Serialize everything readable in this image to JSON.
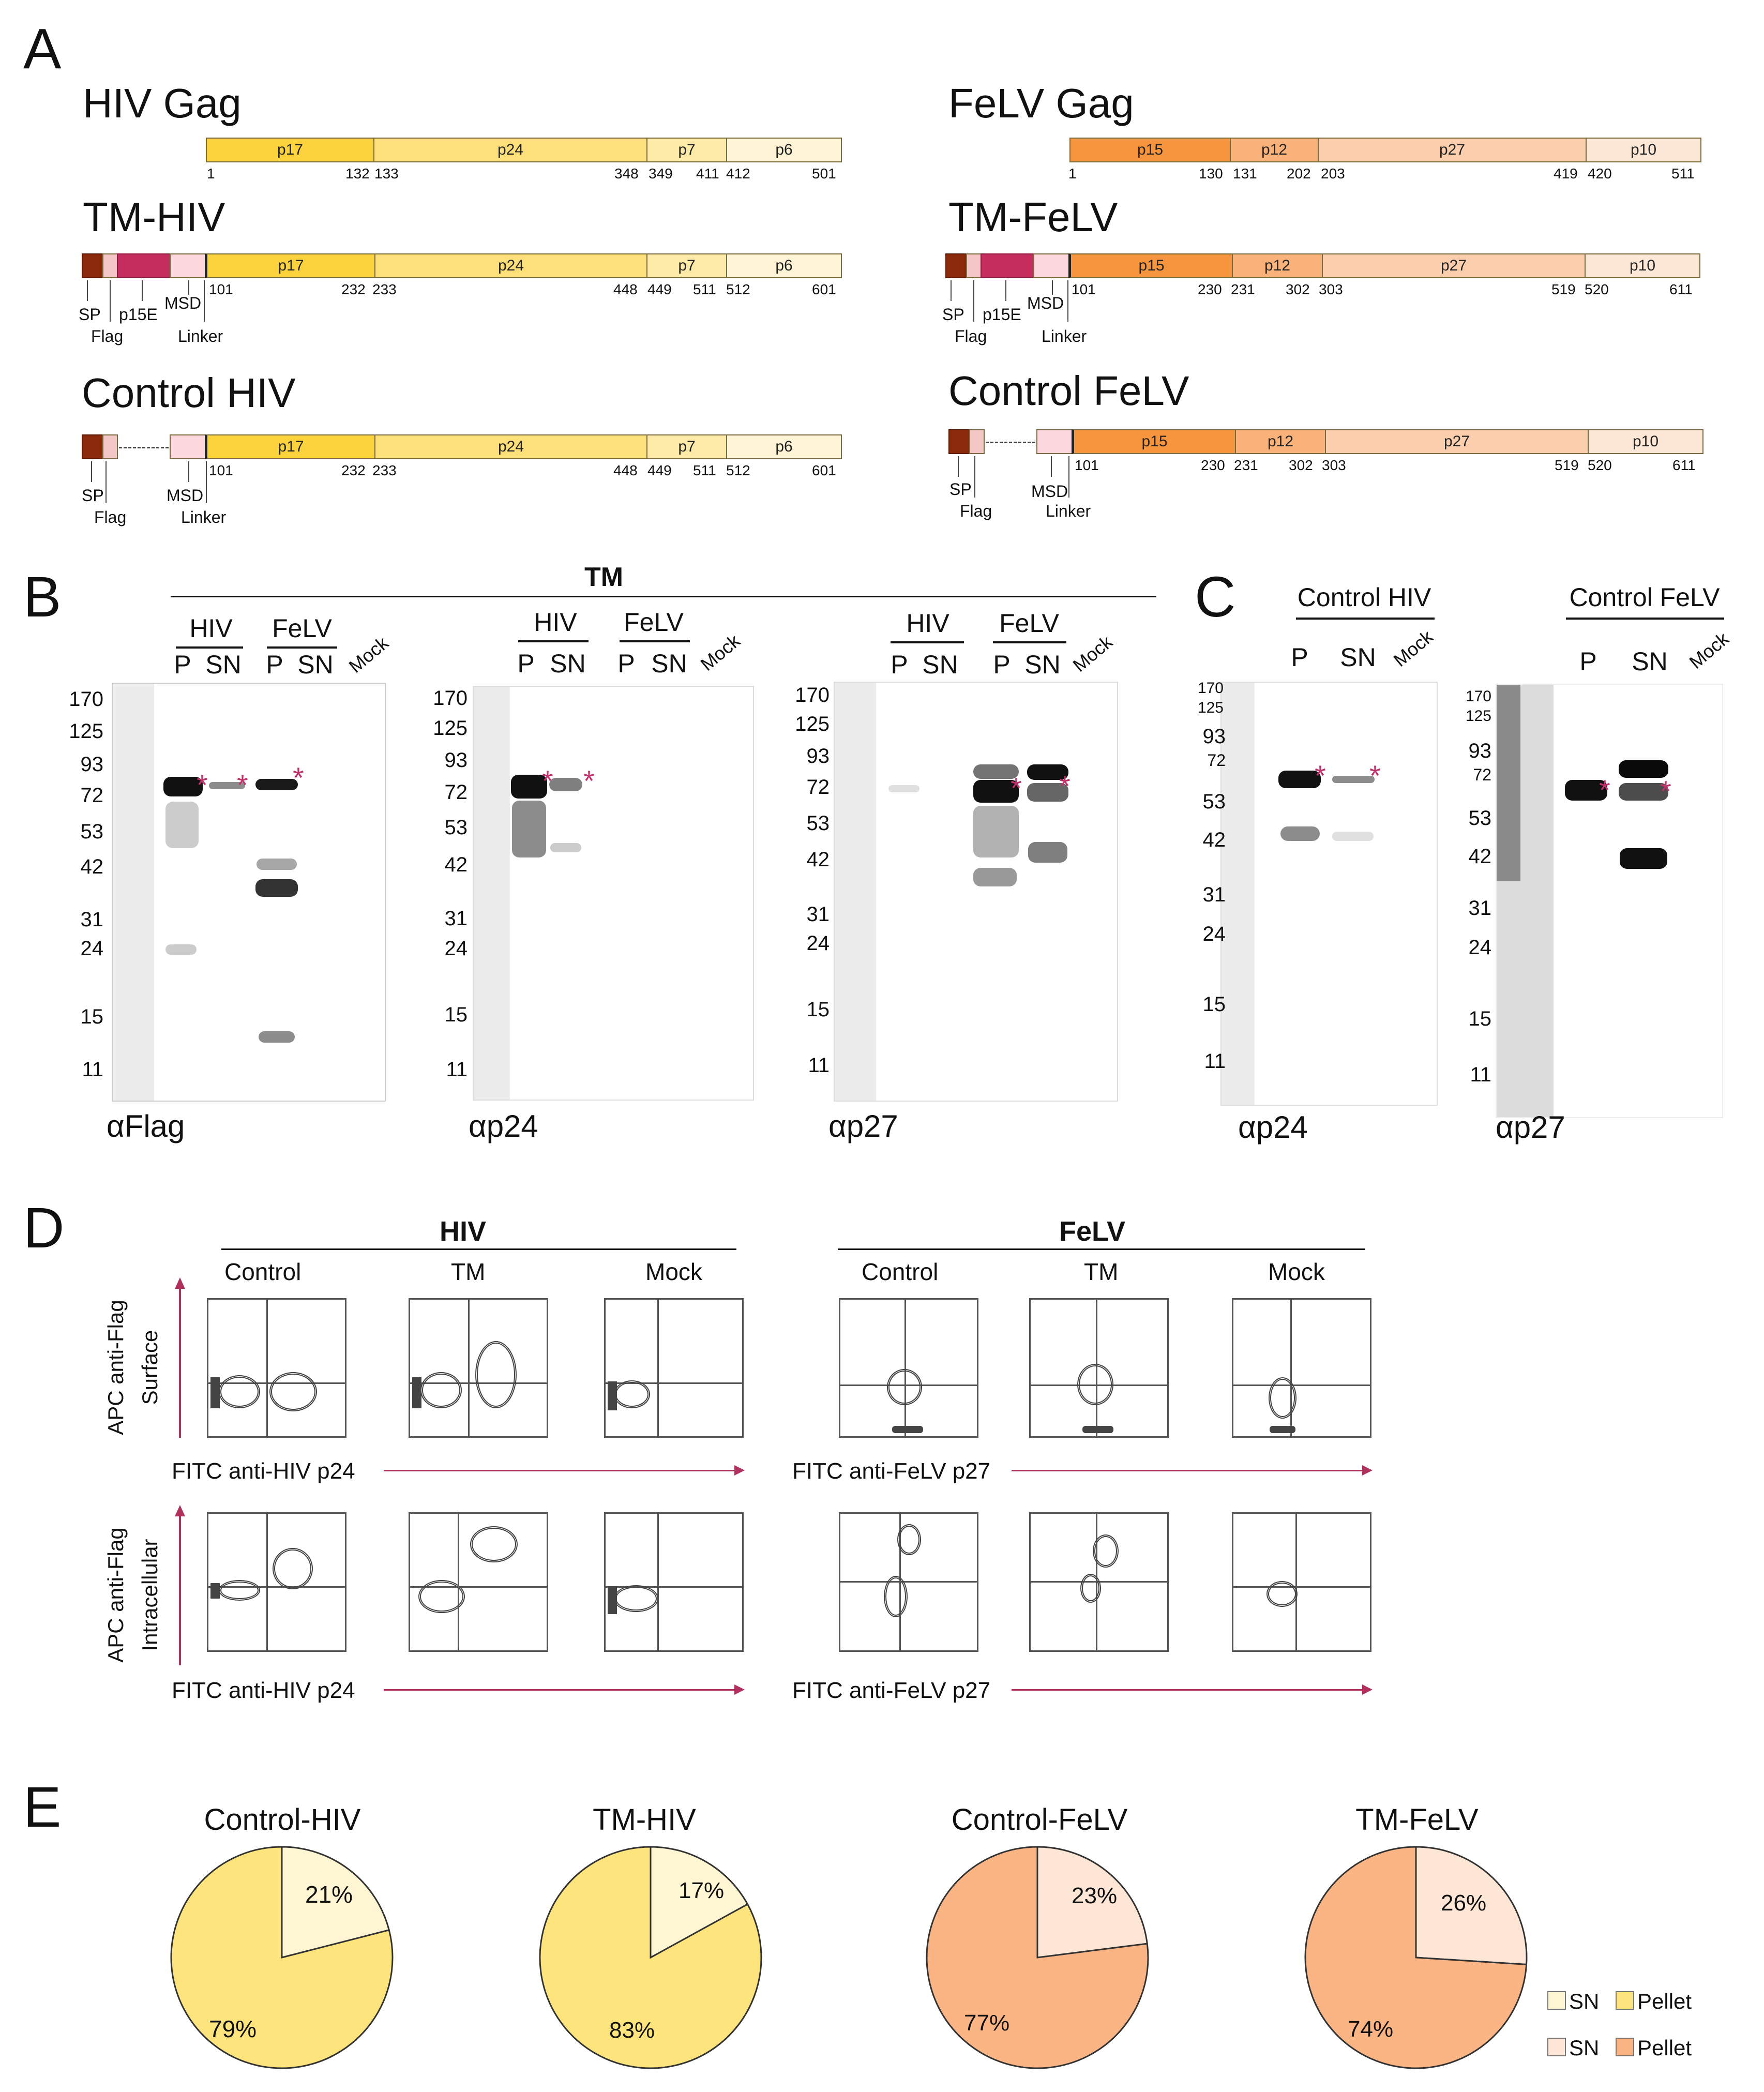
{
  "colors": {
    "hiv_p17": "#FCD33C",
    "hiv_p24": "#FDE07A",
    "hiv_p7": "#FEEAA8",
    "hiv_p6": "#FFF5D6",
    "felv_p15": "#F7953E",
    "felv_p12": "#F9B27A",
    "felv_p27": "#FBCFAE",
    "felv_p10": "#FDE7D6",
    "sp": "#8B2A0A",
    "flag": "#F4C6C6",
    "p15e": "#C52D5E",
    "msd": "#FCD8DE",
    "star": "#C0306A",
    "arrow": "#B0305E",
    "pie_hiv_pellet": "#FDE47C",
    "pie_hiv_sn": "#FFF6D4",
    "pie_felv_pellet": "#FBB484",
    "pie_felv_sn": "#FDE6D6"
  },
  "panel_labels": [
    "A",
    "B",
    "C",
    "D",
    "E"
  ],
  "panelA": {
    "hiv_gag": {
      "title": "HIV Gag",
      "segments": [
        "p17",
        "p24",
        "p7",
        "p6"
      ],
      "numbers": [
        "1",
        "132",
        "133",
        "348",
        "349",
        "411",
        "412",
        "501"
      ]
    },
    "tm_hiv": {
      "title": "TM-HIV",
      "segments": [
        "p17",
        "p24",
        "p7",
        "p6"
      ],
      "numbers": [
        "101",
        "232",
        "233",
        "448",
        "449",
        "511",
        "512",
        "601"
      ],
      "labels": [
        "SP",
        "Flag",
        "p15E",
        "MSD",
        "Linker"
      ]
    },
    "control_hiv": {
      "title": "Control HIV",
      "segments": [
        "p17",
        "p24",
        "p7",
        "p6"
      ],
      "numbers": [
        "101",
        "232",
        "233",
        "448",
        "449",
        "511",
        "512",
        "601"
      ],
      "labels": [
        "SP",
        "Flag",
        "MSD",
        "Linker"
      ]
    },
    "felv_gag": {
      "title": "FeLV Gag",
      "segments": [
        "p15",
        "p12",
        "p27",
        "p10"
      ],
      "numbers": [
        "1",
        "130",
        "131",
        "202",
        "203",
        "419",
        "420",
        "511"
      ]
    },
    "tm_felv": {
      "title": "TM-FeLV",
      "segments": [
        "p15",
        "p12",
        "p27",
        "p10"
      ],
      "numbers": [
        "101",
        "230",
        "231",
        "302",
        "303",
        "519",
        "520",
        "611"
      ],
      "labels": [
        "SP",
        "Flag",
        "p15E",
        "MSD",
        "Linker"
      ]
    },
    "control_felv": {
      "title": "Control FeLV",
      "segments": [
        "p15",
        "p12",
        "p27",
        "p10"
      ],
      "numbers": [
        "101",
        "230",
        "231",
        "302",
        "303",
        "519",
        "520",
        "611"
      ],
      "labels": [
        "SP",
        "Flag",
        "MSD",
        "Linker"
      ]
    }
  },
  "panelB": {
    "header": "TM",
    "blots": [
      {
        "groups": [
          "HIV",
          "FeLV"
        ],
        "lanes": [
          "P",
          "SN",
          "P",
          "SN"
        ],
        "mock": "Mock",
        "mw": [
          "170",
          "125",
          "93",
          "72",
          "53",
          "42",
          "31",
          "24",
          "15",
          "11"
        ],
        "antibody": "αFlag"
      },
      {
        "groups": [
          "HIV",
          "FeLV"
        ],
        "lanes": [
          "P",
          "SN",
          "P",
          "SN"
        ],
        "mock": "Mock",
        "mw": [
          "170",
          "125",
          "93",
          "72",
          "53",
          "42",
          "31",
          "24",
          "15",
          "11"
        ],
        "antibody": "αp24"
      },
      {
        "groups": [
          "HIV",
          "FeLV"
        ],
        "lanes": [
          "P",
          "SN",
          "P",
          "SN"
        ],
        "mock": "Mock",
        "mw": [
          "170",
          "125",
          "93",
          "72",
          "53",
          "42",
          "31",
          "24",
          "15",
          "11"
        ],
        "antibody": "αp27"
      }
    ]
  },
  "panelC": {
    "blots": [
      {
        "header": "Control HIV",
        "lanes": [
          "P",
          "SN"
        ],
        "mock": "Mock",
        "mw": [
          "170",
          "125",
          "93",
          "72",
          "53",
          "42",
          "31",
          "24",
          "15",
          "11"
        ],
        "antibody": "αp24"
      },
      {
        "header": "Control FeLV",
        "lanes": [
          "P",
          "SN"
        ],
        "mock": "Mock",
        "mw": [
          "170",
          "125",
          "93",
          "72",
          "53",
          "42",
          "31",
          "24",
          "15",
          "11"
        ],
        "antibody": "αp27"
      }
    ]
  },
  "panelD": {
    "groups": [
      {
        "header": "HIV",
        "columns": [
          "Control",
          "TM",
          "Mock"
        ],
        "x_axis": "FITC anti-HIV p24"
      },
      {
        "header": "FeLV",
        "columns": [
          "Control",
          "TM",
          "Mock"
        ],
        "x_axis": "FITC anti-FeLV p27"
      }
    ],
    "rows": [
      {
        "y_axis": "APC anti-Flag",
        "y_sub": "Surface"
      },
      {
        "y_axis": "APC anti-Flag",
        "y_sub": "Intracellular"
      }
    ]
  },
  "chart_data": [
    {
      "type": "pie",
      "title": "Control-HIV",
      "labels": [
        "SN",
        "Pellet"
      ],
      "values": [
        21,
        79
      ],
      "value_labels": [
        "21%",
        "79%"
      ]
    },
    {
      "type": "pie",
      "title": "TM-HIV",
      "labels": [
        "SN",
        "Pellet"
      ],
      "values": [
        17,
        83
      ],
      "value_labels": [
        "17%",
        "83%"
      ]
    },
    {
      "type": "pie",
      "title": "Control-FeLV",
      "labels": [
        "SN",
        "Pellet"
      ],
      "values": [
        23,
        77
      ],
      "value_labels": [
        "23%",
        "77%"
      ]
    },
    {
      "type": "pie",
      "title": "TM-FeLV",
      "labels": [
        "SN",
        "Pellet"
      ],
      "values": [
        26,
        74
      ],
      "value_labels": [
        "26%",
        "74%"
      ]
    }
  ],
  "legend": [
    {
      "sn": "SN",
      "pellet": "Pellet"
    },
    {
      "sn": "SN",
      "pellet": "Pellet"
    }
  ]
}
